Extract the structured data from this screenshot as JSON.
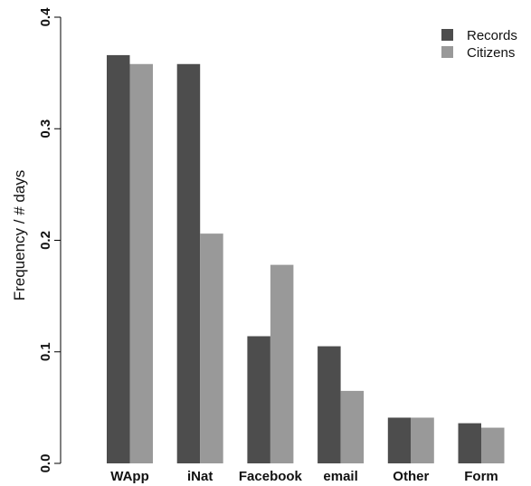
{
  "chart_data": {
    "type": "bar",
    "title": "",
    "xlabel": "",
    "ylabel": "Frequency / # days",
    "ylim": [
      0,
      0.4
    ],
    "yticks": [
      "0.0",
      "0.1",
      "0.2",
      "0.3",
      "0.4"
    ],
    "categories": [
      "WApp",
      "iNat",
      "Facebook",
      "email",
      "Other",
      "Form"
    ],
    "series": [
      {
        "name": "Records",
        "color": "#4d4d4d",
        "values": [
          0.366,
          0.358,
          0.114,
          0.105,
          0.041,
          0.036
        ]
      },
      {
        "name": "Citizens",
        "color": "#999999",
        "values": [
          0.358,
          0.206,
          0.178,
          0.065,
          0.041,
          0.032
        ]
      }
    ],
    "legend_position": "top-right",
    "grid": false
  }
}
